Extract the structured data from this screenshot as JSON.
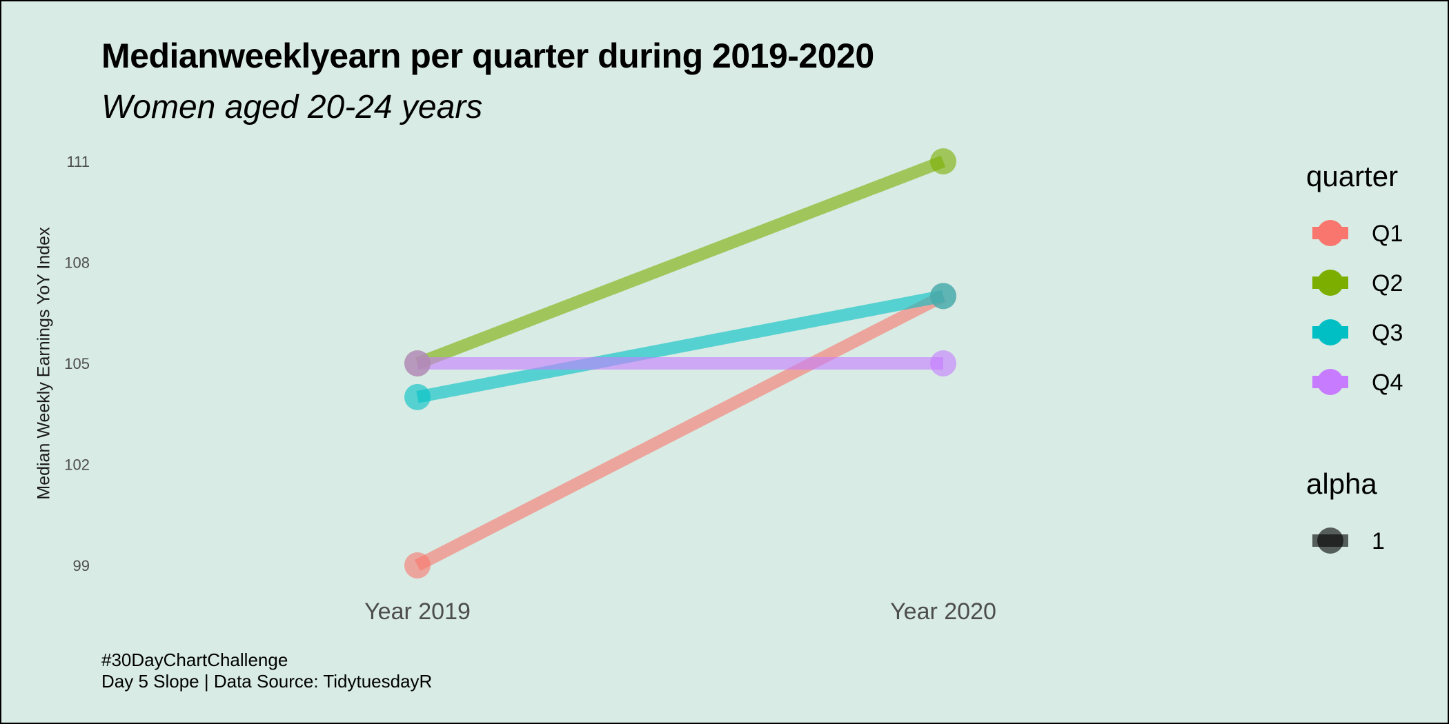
{
  "chart_data": {
    "type": "line",
    "title": "Medianweeklyearn per quarter during 2019-2020",
    "subtitle": "Women aged 20-24 years",
    "ylabel": "Median Weekly  Earnings YoY  Index",
    "xlabel": "",
    "categories": [
      "Year 2019",
      "Year 2020"
    ],
    "yticks": [
      99,
      102,
      105,
      108,
      111
    ],
    "ylim": [
      98.3,
      111.7
    ],
    "series": [
      {
        "name": "Q1",
        "color": "#f8766d",
        "values": [
          99,
          107
        ]
      },
      {
        "name": "Q2",
        "color": "#7cae00",
        "values": [
          105,
          111
        ]
      },
      {
        "name": "Q3",
        "color": "#00bfc4",
        "values": [
          104,
          107
        ]
      },
      {
        "name": "Q4",
        "color": "#c77cff",
        "values": [
          105,
          105
        ]
      }
    ],
    "legend": {
      "position": "right",
      "quarter_title": "quarter",
      "alpha_title": "alpha",
      "alpha_entries": [
        "1"
      ]
    },
    "grid": false,
    "caption_lines": [
      "#30DayChartChallenge",
      "Day  5 Slope | Data Source: TidytuesdayR"
    ]
  }
}
